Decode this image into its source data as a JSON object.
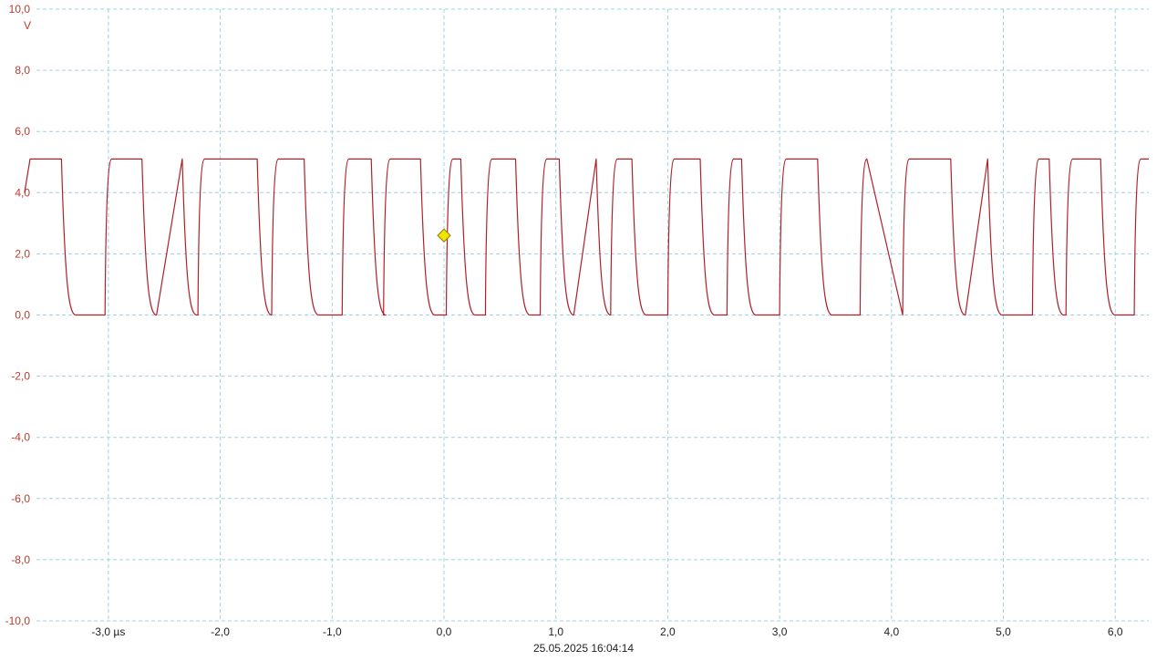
{
  "chart_data": {
    "type": "line",
    "ylabel": "V",
    "ylim": [
      -10,
      10
    ],
    "xlim": [
      -3.75,
      6.3
    ],
    "x_unit": "µs",
    "yticks": [
      {
        "value": 10,
        "label": "10,0"
      },
      {
        "value": 8,
        "label": "8,0"
      },
      {
        "value": 6,
        "label": "6,0"
      },
      {
        "value": 4,
        "label": "4,0"
      },
      {
        "value": 2,
        "label": "2,0"
      },
      {
        "value": 0,
        "label": "0,0"
      },
      {
        "value": -2,
        "label": "-2,0"
      },
      {
        "value": -4,
        "label": "-4,0"
      },
      {
        "value": -6,
        "label": "-6,0"
      },
      {
        "value": -8,
        "label": "-8,0"
      },
      {
        "value": -10,
        "label": "-10,0"
      }
    ],
    "xticks": [
      {
        "value": -3,
        "label": "-3,0 µs"
      },
      {
        "value": -2,
        "label": "-2,0"
      },
      {
        "value": -1,
        "label": "-1,0"
      },
      {
        "value": 0,
        "label": "0,0"
      },
      {
        "value": 1,
        "label": "1,0"
      },
      {
        "value": 2,
        "label": "2,0"
      },
      {
        "value": 3,
        "label": "3,0"
      },
      {
        "value": 4,
        "label": "4,0"
      },
      {
        "value": 5,
        "label": "5,0"
      },
      {
        "value": 6,
        "label": "6,0"
      }
    ],
    "grid": true,
    "timestamp": "25.05.2025 16:04:14",
    "trigger": {
      "x": 0.0,
      "y": 2.6,
      "color": "#f2e400"
    },
    "series": [
      {
        "color": "#b0202a",
        "high_level": 5.1,
        "low_level": 0.0,
        "start_level": 4.0,
        "rising_edges": [
          -3.03,
          -2.2,
          -1.54,
          -0.91,
          -0.54,
          0.02,
          0.37,
          0.86,
          1.49,
          2.0,
          2.53,
          3.0,
          3.72,
          4.1,
          5.26,
          5.56,
          6.17
        ],
        "falling_edges": [
          -3.42,
          -2.7,
          -2.34,
          -1.67,
          -1.25,
          -0.65,
          -0.21,
          0.15,
          0.64,
          1.03,
          1.36,
          1.68,
          2.29,
          2.66,
          3.34,
          4.53,
          4.86,
          5.41,
          5.87
        ]
      }
    ]
  }
}
